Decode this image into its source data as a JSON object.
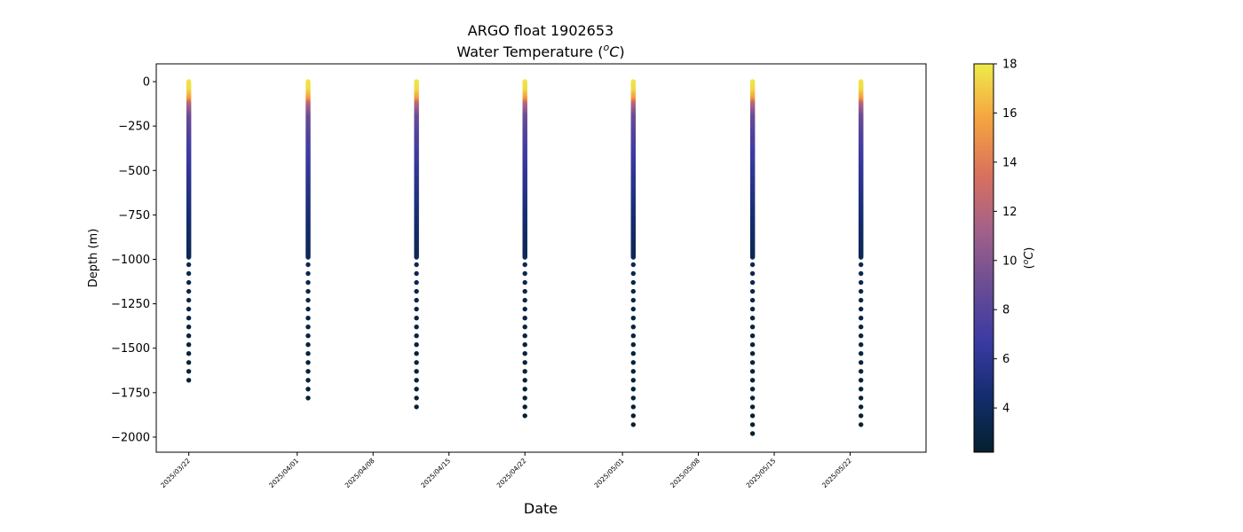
{
  "chart_data": {
    "type": "scatter",
    "title": "ARGO float 1902653",
    "subtitle": "Water Temperature (ᴼC)",
    "subtitle_parts": {
      "prefix": "Water Temperature (",
      "sup": "o",
      "unit": "C",
      "suffix": ")"
    },
    "xlabel": "Date",
    "ylabel": "Depth (m)",
    "x_ticks": [
      "2025/03/22",
      "2025/04/01",
      "2025/04/08",
      "2025/04/15",
      "2025/04/22",
      "2025/05/01",
      "2025/05/08",
      "2025/05/15",
      "2025/05/22"
    ],
    "xlim": [
      "2025-03-19",
      "2025-05-29"
    ],
    "ylim": [
      -2085,
      100
    ],
    "y_ticks": [
      0,
      -250,
      -500,
      -750,
      -1000,
      -1250,
      -1500,
      -1750,
      -2000
    ],
    "grid": false,
    "colorbar": {
      "label_parts": {
        "prefix": "(",
        "sup": "o",
        "unit": "C",
        "suffix": ")"
      },
      "range": [
        2.2,
        18
      ],
      "ticks": [
        4,
        6,
        8,
        10,
        12,
        14,
        16,
        18
      ],
      "colormap": "thermal",
      "colors": [
        "#04202c",
        "#132d6e",
        "#3b3aa3",
        "#6a4d94",
        "#a2618a",
        "#d9715d",
        "#f5a340",
        "#eeeb4b"
      ]
    },
    "profiles": [
      {
        "date": "2025-03-22",
        "max_depth": 1680
      },
      {
        "date": "2025-04-02",
        "max_depth": 1780
      },
      {
        "date": "2025-04-12",
        "max_depth": 1830
      },
      {
        "date": "2025-04-22",
        "max_depth": 1880
      },
      {
        "date": "2025-05-02",
        "max_depth": 1930
      },
      {
        "date": "2025-05-13",
        "max_depth": 1980
      },
      {
        "date": "2025-05-23",
        "max_depth": 1930
      }
    ],
    "temperature_profile": {
      "depth": [
        0,
        50,
        100,
        130,
        200,
        300,
        400,
        500,
        600,
        700,
        800,
        900,
        1000,
        1200,
        1500,
        2000
      ],
      "temp": [
        17.8,
        17.5,
        15.5,
        12.0,
        9.0,
        7.8,
        7.0,
        6.2,
        5.6,
        5.0,
        4.4,
        4.0,
        3.6,
        3.1,
        2.7,
        2.3
      ]
    }
  }
}
